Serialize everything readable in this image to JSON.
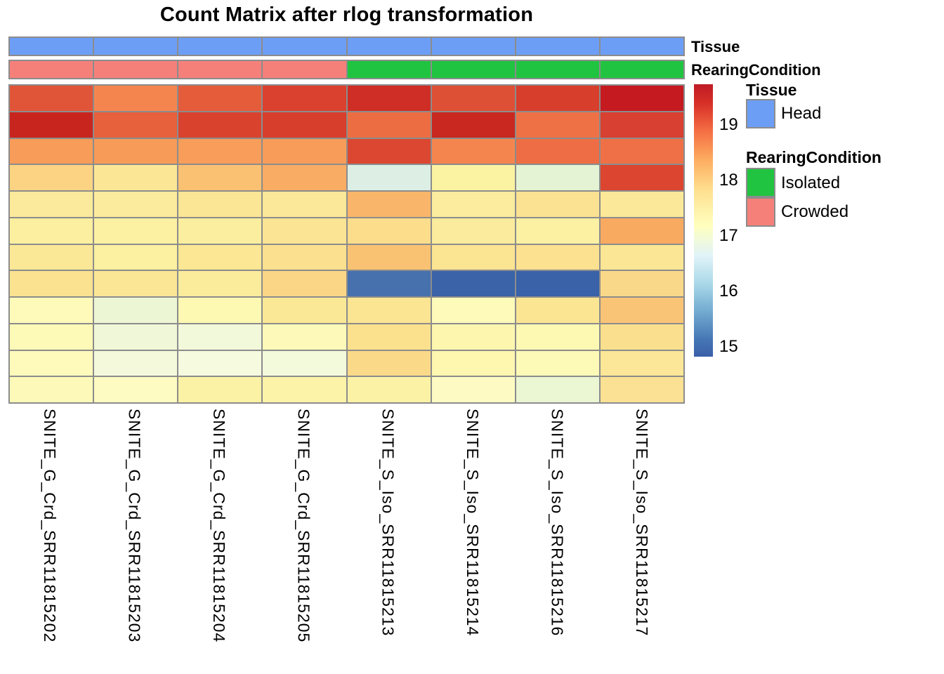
{
  "title": "Count Matrix after rlog transformation",
  "annotation_bar_labels": {
    "tissue": "Tissue",
    "rearing": "RearingCondition"
  },
  "legend": {
    "tissue_heading": "Tissue",
    "tissue_items": [
      {
        "label": "Head",
        "color": "#6D9EF6"
      }
    ],
    "rearing_heading": "RearingCondition",
    "rearing_items": [
      {
        "label": "Isolated",
        "color": "#21C440"
      },
      {
        "label": "Crowded",
        "color": "#F5807A"
      }
    ]
  },
  "colorbar": {
    "ticks": [
      "19",
      "18",
      "17",
      "16",
      "15"
    ],
    "tick_values": [
      19,
      18,
      17,
      16,
      15
    ],
    "approx_range": [
      14.82,
      19.73
    ],
    "gradient_stops": [
      [
        "#BE1B26",
        0
      ],
      [
        "#D73027",
        7
      ],
      [
        "#F46D43",
        17
      ],
      [
        "#FDAE61",
        28
      ],
      [
        "#FEE090",
        39
      ],
      [
        "#FFFFBF",
        52
      ],
      [
        "#E0F3F8",
        63
      ],
      [
        "#ABD9E9",
        73
      ],
      [
        "#74ADD1",
        83
      ],
      [
        "#4575B4",
        94
      ],
      [
        "#3A5FA8",
        100
      ]
    ]
  },
  "grid_color": "#8C8C8C",
  "chart_data": {
    "type": "heatmap",
    "title": "Count Matrix after rlog transformation",
    "columns": [
      "SNITE_G_Crd_SRR11815202",
      "SNITE_G_Crd_SRR11815203",
      "SNITE_G_Crd_SRR11815204",
      "SNITE_G_Crd_SRR11815205",
      "SNITE_S_Iso_SRR11815213",
      "SNITE_S_Iso_SRR11815214",
      "SNITE_S_Iso_SRR11815216",
      "SNITE_S_Iso_SRR11815217"
    ],
    "n_rows": 12,
    "row_labels_shown": false,
    "column_annotations": {
      "Tissue": [
        "Head",
        "Head",
        "Head",
        "Head",
        "Head",
        "Head",
        "Head",
        "Head"
      ],
      "RearingCondition": [
        "Crowded",
        "Crowded",
        "Crowded",
        "Crowded",
        "Isolated",
        "Isolated",
        "Isolated",
        "Isolated"
      ]
    },
    "annotation_colors": {
      "Head": "#6D9EF6",
      "Isolated": "#21C440",
      "Crowded": "#F5807A"
    },
    "value_scale": {
      "ticks": [
        15,
        16,
        17,
        18,
        19
      ],
      "approx_range": [
        14.82,
        19.73
      ]
    },
    "cell_colors": [
      [
        "#E05538",
        "#F5854F",
        "#E55C3A",
        "#DA412E",
        "#CE2E25",
        "#DE5035",
        "#D83E2C",
        "#C41A20"
      ],
      [
        "#C8251E",
        "#E6613C",
        "#D9432E",
        "#D73E2C",
        "#EC6D42",
        "#C8281F",
        "#EE7146",
        "#D84031"
      ],
      [
        "#F79C59",
        "#F79B58",
        "#F89D5A",
        "#F89C5A",
        "#DB4730",
        "#F5854F",
        "#EE6D44",
        "#EF7046"
      ],
      [
        "#FBD383",
        "#FBE696",
        "#FAC172",
        "#F9AC64",
        "#DDEFE4",
        "#FBF3A2",
        "#E4F3D3",
        "#DC4530"
      ],
      [
        "#FBEA9B",
        "#FBEB9D",
        "#FBE695",
        "#FBE898",
        "#F9B569",
        "#FBEC9E",
        "#FBE292",
        "#FBE999"
      ],
      [
        "#FCEFA0",
        "#FCF0A3",
        "#FCEE9F",
        "#FBE494",
        "#FBDD8C",
        "#FBEB9C",
        "#FCF0A3",
        "#F9AA61"
      ],
      [
        "#FBE897",
        "#FCF0A1",
        "#FBE794",
        "#FBE08F",
        "#F9C273",
        "#FBE492",
        "#FBE190",
        "#FBE695"
      ],
      [
        "#FBE291",
        "#FBE695",
        "#FBEC9C",
        "#FAD686",
        "#4671AD",
        "#3A63A8",
        "#3962A8",
        "#FAD88A"
      ],
      [
        "#FDFABA",
        "#ECF6D4",
        "#FDF8B2",
        "#FBE897",
        "#FBE492",
        "#FDFABA",
        "#FBE593",
        "#F9C476"
      ],
      [
        "#FDF9B6",
        "#EFF7D8",
        "#F2F8DA",
        "#FDFAB9",
        "#FBE18D",
        "#FDF6AE",
        "#FDF8B2",
        "#FAE08E"
      ],
      [
        "#FDFABB",
        "#F4F9DC",
        "#F6FADF",
        "#F3F9DB",
        "#FAD989",
        "#FDF7B0",
        "#FDF9B6",
        "#FBE797"
      ],
      [
        "#FDFAB9",
        "#FDFBC1",
        "#FCF2A5",
        "#FCF3A8",
        "#FCF2A6",
        "#FDFBC3",
        "#EBF6D3",
        "#FAE193"
      ]
    ],
    "estimated_values": [
      [
        19.1,
        18.7,
        19.0,
        19.3,
        19.4,
        19.1,
        19.3,
        19.6
      ],
      [
        19.5,
        19.0,
        19.3,
        19.3,
        18.9,
        19.5,
        18.8,
        19.2
      ],
      [
        18.5,
        18.5,
        18.4,
        18.5,
        19.2,
        18.7,
        18.9,
        18.8
      ],
      [
        17.9,
        17.6,
        18.1,
        18.3,
        16.5,
        17.3,
        16.7,
        19.2
      ],
      [
        17.4,
        17.4,
        17.6,
        17.5,
        18.2,
        17.4,
        17.7,
        17.5
      ],
      [
        17.3,
        17.3,
        17.4,
        17.6,
        17.8,
        17.5,
        17.3,
        18.3
      ],
      [
        17.5,
        17.3,
        17.5,
        17.7,
        18.1,
        17.6,
        17.7,
        17.6
      ],
      [
        17.7,
        17.6,
        17.4,
        17.9,
        15.1,
        14.9,
        14.9,
        17.8
      ],
      [
        17.0,
        16.8,
        17.1,
        17.5,
        17.6,
        17.0,
        17.6,
        18.1
      ],
      [
        17.1,
        16.8,
        16.8,
        17.0,
        17.7,
        17.2,
        17.1,
        17.7
      ],
      [
        17.0,
        16.8,
        16.9,
        16.8,
        17.8,
        17.2,
        17.1,
        17.5
      ],
      [
        17.1,
        17.0,
        17.3,
        17.3,
        17.3,
        16.9,
        16.8,
        17.7
      ]
    ]
  }
}
